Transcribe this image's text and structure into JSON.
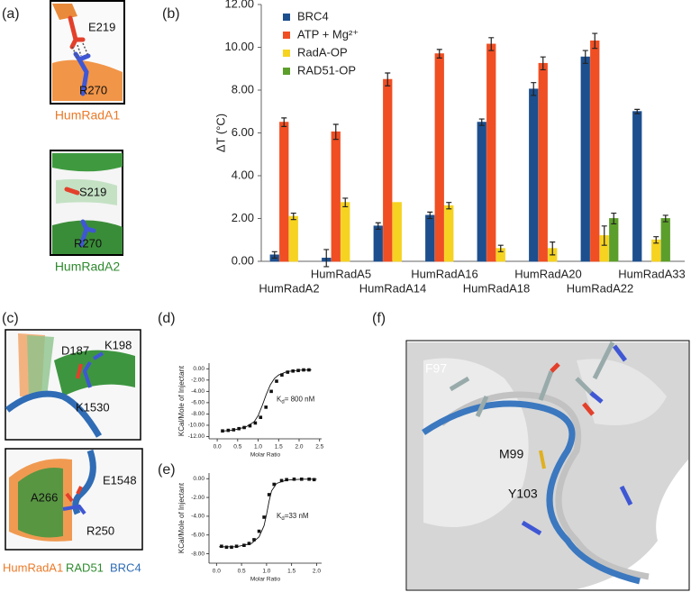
{
  "panels": {
    "labels": [
      "(a)",
      "(b)",
      "(c)",
      "(d)",
      "(e)",
      "(f)"
    ],
    "a": {
      "top_residues": [
        "E219",
        "R270"
      ],
      "top_caption": "HumRadA1",
      "bottom_residues": [
        "S219",
        "R270"
      ],
      "bottom_caption": "HumRadA2"
    },
    "c": {
      "top_residues": [
        "D187",
        "K198",
        "K1530"
      ],
      "bottom_residues": [
        "E1548",
        "A266",
        "R250"
      ],
      "legend": [
        "HumRadA1",
        "RAD51",
        "BRC4"
      ]
    },
    "f": {
      "residues": [
        "F97",
        "M99",
        "Y103"
      ]
    }
  },
  "chart_data": [
    {
      "type": "bar",
      "y_label": "ΔT (°C)",
      "legend": "upper left",
      "grid": false,
      "categories": [
        "HumRadA2",
        "HumRadA5",
        "HumRadA14",
        "HumRadA16",
        "HumRadA18",
        "HumRadA20",
        "HumRadA22",
        "HumRadA33"
      ],
      "series": [
        {
          "name": "BRC4",
          "color": "#1d4f8e",
          "values": [
            0.3,
            0.15,
            1.65,
            2.15,
            6.5,
            8.05,
            9.55,
            7.0
          ],
          "errors": [
            0.15,
            0.4,
            0.15,
            0.15,
            0.15,
            0.3,
            0.3,
            0.1
          ]
        },
        {
          "name": "ATP + Mg²⁺",
          "color": "#f04e23",
          "values": [
            6.5,
            6.05,
            8.5,
            9.7,
            10.15,
            9.25,
            10.3,
            0
          ],
          "errors": [
            0.2,
            0.35,
            0.3,
            0.2,
            0.3,
            0.3,
            0.35,
            0
          ]
        },
        {
          "name": "RadA-OP",
          "color": "#f6d320",
          "values": [
            2.1,
            2.75,
            2.75,
            2.6,
            0.6,
            0.6,
            1.2,
            1.0
          ],
          "errors": [
            0.15,
            0.2,
            0,
            0.15,
            0.15,
            0.3,
            0.45,
            0.15
          ]
        },
        {
          "name": "RAD51-OP",
          "color": "#5c9e2b",
          "values": [
            0,
            0,
            0,
            0,
            0,
            0,
            2.0,
            2.0
          ],
          "errors": [
            0,
            0,
            0,
            0,
            0,
            0,
            0.25,
            0.15
          ]
        }
      ],
      "ylim": [
        0,
        12
      ],
      "yticks": [
        {
          "value": 0,
          "label": "0.00"
        },
        {
          "value": 2,
          "label": "2.00"
        },
        {
          "value": 4,
          "label": "4.00"
        },
        {
          "value": 6,
          "label": "6.00"
        },
        {
          "value": 8,
          "label": "8.00"
        },
        {
          "value": 10,
          "label": "10.00"
        },
        {
          "value": 12,
          "label": "12.00"
        }
      ]
    },
    {
      "type": "scatter",
      "x_label": "Molar Ratio",
      "y_label": "KCal/Mole of Injectant",
      "annotation": {
        "main": "K",
        "sub": "d",
        "rest": "= 800 nM"
      },
      "series": [
        {
          "marker": "square",
          "color": "#111111",
          "x": [
            0.13,
            0.27,
            0.4,
            0.53,
            0.66,
            0.8,
            0.93,
            1.06,
            1.19,
            1.32,
            1.45,
            1.58,
            1.72,
            1.85,
            1.98,
            2.11,
            2.24
          ],
          "values": [
            -11,
            -10.9,
            -10.8,
            -10.6,
            -10.4,
            -10.1,
            -9.6,
            -8.6,
            -6.8,
            -4,
            -2.2,
            -1.1,
            -0.6,
            -0.4,
            -0.3,
            -0.2,
            -0.2
          ]
        },
        {
          "marker": "line",
          "color": "#111111",
          "x": [
            0.1,
            0.4,
            0.7,
            0.9,
            1.0,
            1.1,
            1.2,
            1.3,
            1.4,
            1.5,
            1.7,
            2.0,
            2.3
          ],
          "values": [
            -11.05,
            -10.85,
            -10.3,
            -9.4,
            -8.3,
            -6.5,
            -4.5,
            -2.8,
            -1.7,
            -1.1,
            -0.5,
            -0.25,
            -0.2
          ]
        }
      ],
      "xlim": [
        -0.2,
        2.55
      ],
      "ylim": [
        -12.4,
        1.0
      ],
      "xticks": [
        {
          "value": 0,
          "label": "0.0"
        },
        0.5,
        {
          "value": 1,
          "label": "1.0"
        },
        1.5,
        {
          "value": 2,
          "label": "2.0"
        },
        2.5
      ],
      "yticks": [
        {
          "value": 0,
          "label": "0.00"
        },
        {
          "value": -2,
          "label": "-2.00"
        },
        {
          "value": -4,
          "label": "-4.00"
        },
        {
          "value": -6,
          "label": "-6.00"
        },
        {
          "value": -8,
          "label": "-8.00"
        },
        {
          "value": -10,
          "label": "-10.00"
        },
        {
          "value": -12,
          "label": "-12.00"
        }
      ]
    },
    {
      "type": "scatter",
      "x_label": "Molar Ratio",
      "y_label": "KCal/Mole of Injectant",
      "annotation": {
        "main": "K",
        "sub": "d",
        "rest": "=33 nM"
      },
      "series": [
        {
          "marker": "square",
          "color": "#111111",
          "x": [
            0.1,
            0.2,
            0.3,
            0.4,
            0.55,
            0.65,
            0.75,
            0.85,
            0.95,
            1.05,
            1.15,
            1.3,
            1.4,
            1.55,
            1.7,
            1.85,
            1.95
          ],
          "values": [
            -7.2,
            -7.3,
            -7.3,
            -7.2,
            -7.1,
            -6.9,
            -6.5,
            -5.6,
            -4.1,
            -1.7,
            -0.6,
            -0.2,
            -0.1,
            -0.05,
            -0.05,
            -0.05,
            -0.1
          ]
        },
        {
          "marker": "line",
          "color": "#111111",
          "x": [
            0.05,
            0.4,
            0.7,
            0.85,
            0.95,
            1.0,
            1.05,
            1.1,
            1.2,
            1.4,
            1.7,
            2.0
          ],
          "values": [
            -7.25,
            -7.25,
            -6.9,
            -6.2,
            -5.0,
            -3.8,
            -2.4,
            -1.3,
            -0.5,
            -0.15,
            -0.05,
            -0.05
          ]
        }
      ],
      "xlim": [
        -0.15,
        2.1
      ],
      "ylim": [
        -9.0,
        0.6
      ],
      "xticks": [
        {
          "value": 0,
          "label": "0.0"
        },
        0.5,
        {
          "value": 1,
          "label": "1.0"
        },
        1.5,
        {
          "value": 2,
          "label": "2.0"
        }
      ],
      "yticks": [
        {
          "value": 0,
          "label": "0.00"
        },
        {
          "value": -2,
          "label": "-2.00"
        },
        {
          "value": -4,
          "label": "-4.00"
        },
        {
          "value": -6,
          "label": "-6.00"
        },
        {
          "value": -8,
          "label": "-8.00"
        }
      ]
    }
  ]
}
